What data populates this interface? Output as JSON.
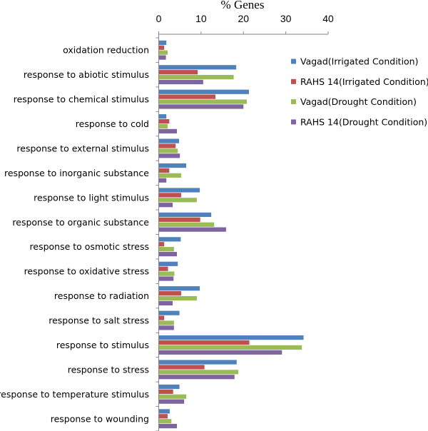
{
  "chart_data": {
    "type": "bar",
    "orientation": "horizontal",
    "title": "% Genes",
    "xlim": [
      0,
      40
    ],
    "xticks": [
      0,
      10,
      20,
      30,
      40
    ],
    "grid": false,
    "legend_position": "right",
    "categories": [
      "oxidation reduction",
      "response to abiotic stimulus",
      "response to chemical stimulus",
      "response to cold",
      "response to external stimulus",
      "response to inorganic substance",
      "response to light stimulus",
      "response to organic substance",
      "response to osmotic stress",
      "response to oxidative stress",
      "response to radiation",
      "response to salt stress",
      "response to stimulus",
      "response to stress",
      "response to temperature stimulus",
      "response to wounding"
    ],
    "series": [
      {
        "name": "Vagad(Irrigated Condition)",
        "color": "#4f81bd",
        "values": [
          1.8,
          18.3,
          21.3,
          1.8,
          4.8,
          6.5,
          9.7,
          12.4,
          5.2,
          4.5,
          9.7,
          4.9,
          34.2,
          18.4,
          4.9,
          2.6
        ]
      },
      {
        "name": "RAHS 14(Irrigated Condition)",
        "color": "#c0504d",
        "values": [
          1.3,
          9.2,
          13.4,
          2.5,
          4.0,
          2.5,
          5.3,
          9.8,
          1.3,
          2.2,
          5.3,
          1.3,
          21.4,
          10.8,
          3.4,
          2.1
        ]
      },
      {
        "name": "Vagad(Drought Condition)",
        "color": "#9bbb59",
        "values": [
          2.1,
          17.7,
          20.8,
          2.1,
          4.5,
          5.3,
          9.0,
          13.1,
          3.6,
          3.7,
          9.0,
          3.6,
          33.8,
          18.8,
          6.5,
          3.0
        ]
      },
      {
        "name": "RAHS 14(Drought Condition)",
        "color": "#8064a2",
        "values": [
          1.7,
          10.5,
          20.0,
          4.3,
          5.0,
          1.8,
          3.3,
          15.9,
          4.3,
          3.5,
          3.3,
          3.6,
          29.1,
          17.9,
          6.0,
          4.3
        ]
      }
    ]
  }
}
